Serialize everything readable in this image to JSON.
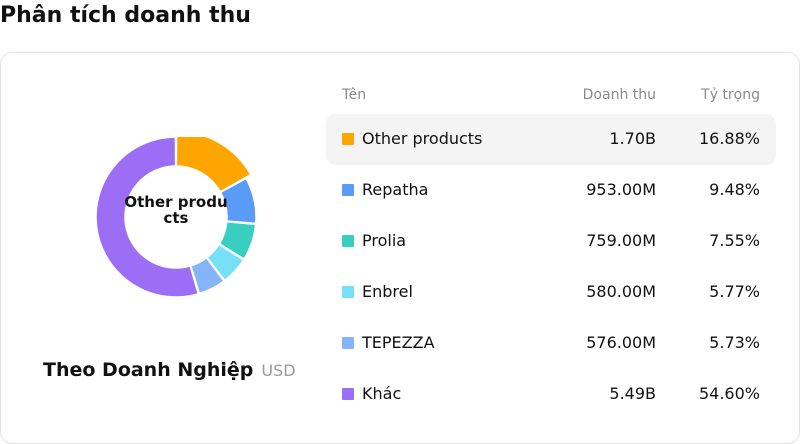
{
  "page": {
    "title": "Phân tích doanh thu"
  },
  "donut": {
    "center_label": "Other products"
  },
  "caption": {
    "title": "Theo Doanh Nghiệp",
    "unit": "USD"
  },
  "table": {
    "headers": {
      "name": "Tên",
      "revenue": "Doanh thu",
      "share": "Tỷ trọng"
    },
    "rows": [
      {
        "name": "Other products",
        "revenue": "1.70B",
        "share": "16.88%",
        "color": "#FFA500",
        "highlighted": true
      },
      {
        "name": "Repatha",
        "revenue": "953.00M",
        "share": "9.48%",
        "color": "#5B9BF8",
        "highlighted": false
      },
      {
        "name": "Prolia",
        "revenue": "759.00M",
        "share": "7.55%",
        "color": "#38CEC0",
        "highlighted": false
      },
      {
        "name": "Enbrel",
        "revenue": "580.00M",
        "share": "5.77%",
        "color": "#75E0F8",
        "highlighted": false
      },
      {
        "name": "TEPEZZA",
        "revenue": "576.00M",
        "share": "5.73%",
        "color": "#86B4F8",
        "highlighted": false
      },
      {
        "name": "Khác",
        "revenue": "5.49B",
        "share": "54.60%",
        "color": "#9B6EF5",
        "highlighted": false
      }
    ]
  },
  "chart_data": {
    "type": "pie",
    "variant": "donut",
    "categories": [
      "Other products",
      "Repatha",
      "Prolia",
      "Enbrel",
      "TEPEZZA",
      "Khác"
    ],
    "values": [
      16.88,
      9.48,
      7.55,
      5.77,
      5.73,
      54.6
    ],
    "colors": [
      "#FFA500",
      "#5B9BF8",
      "#38CEC0",
      "#75E0F8",
      "#86B4F8",
      "#9B6EF5"
    ],
    "selected": "Other products"
  }
}
